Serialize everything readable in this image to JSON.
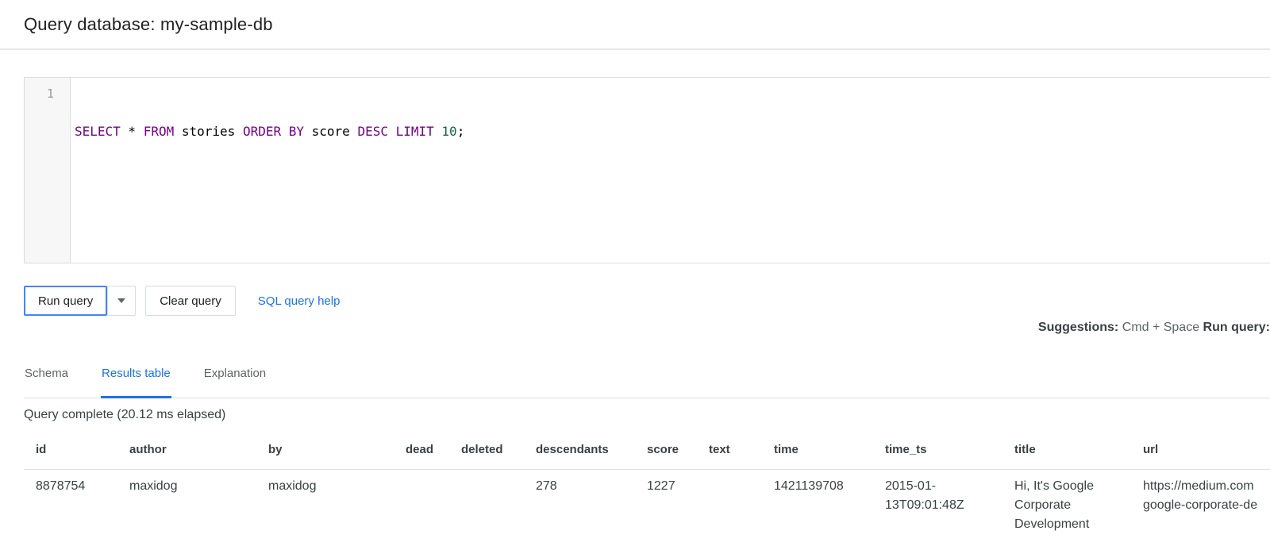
{
  "header": {
    "title": "Query database: my-sample-db"
  },
  "editor": {
    "line_number": "1",
    "query": "SELECT * FROM stories ORDER BY score DESC LIMIT 10;",
    "tokens": [
      {
        "text": "SELECT",
        "type": "keyword"
      },
      {
        "text": " * ",
        "type": "plain"
      },
      {
        "text": "FROM",
        "type": "keyword"
      },
      {
        "text": " stories ",
        "type": "plain"
      },
      {
        "text": "ORDER BY",
        "type": "keyword"
      },
      {
        "text": " score ",
        "type": "plain"
      },
      {
        "text": "DESC",
        "type": "keyword"
      },
      {
        "text": " ",
        "type": "plain"
      },
      {
        "text": "LIMIT",
        "type": "keyword"
      },
      {
        "text": " ",
        "type": "plain"
      },
      {
        "text": "10",
        "type": "number"
      },
      {
        "text": ";",
        "type": "plain"
      }
    ]
  },
  "toolbar": {
    "run_label": "Run query",
    "clear_label": "Clear query",
    "help_label": "SQL query help"
  },
  "suggestions": {
    "label_bold": "Suggestions:",
    "shortcut": " Cmd + Space ",
    "action_bold": "Run query:"
  },
  "tabs": [
    {
      "label": "Schema",
      "active": false
    },
    {
      "label": "Results table",
      "active": true
    },
    {
      "label": "Explanation",
      "active": false
    }
  ],
  "status": {
    "message": "Query complete (20.12 ms elapsed)"
  },
  "results": {
    "columns": [
      "id",
      "author",
      "by",
      "dead",
      "deleted",
      "descendants",
      "score",
      "text",
      "time",
      "time_ts",
      "title",
      "url"
    ],
    "rows": [
      [
        "8878754",
        "maxidog",
        "maxidog",
        "",
        "",
        "278",
        "1227",
        "",
        "1421139708",
        "2015-01-13T09:01:48Z",
        "Hi, It's Google Corporate Development",
        [
          "https://medium.com",
          "google-corporate-de"
        ]
      ]
    ]
  },
  "colors": {
    "accent-blue": "#1a73e8",
    "run-border-blue": "#4285f4",
    "keyword-purple": "#770088",
    "number-green": "#116644",
    "text-dark": "#202124",
    "text-gray": "#5f6368",
    "divider-gray": "#e0e0e0",
    "editor-border": "#dcdcdc",
    "gutter-bg": "#f7f7f7",
    "line-number-gray": "#999999",
    "button-border-gray": "#dadce0"
  }
}
